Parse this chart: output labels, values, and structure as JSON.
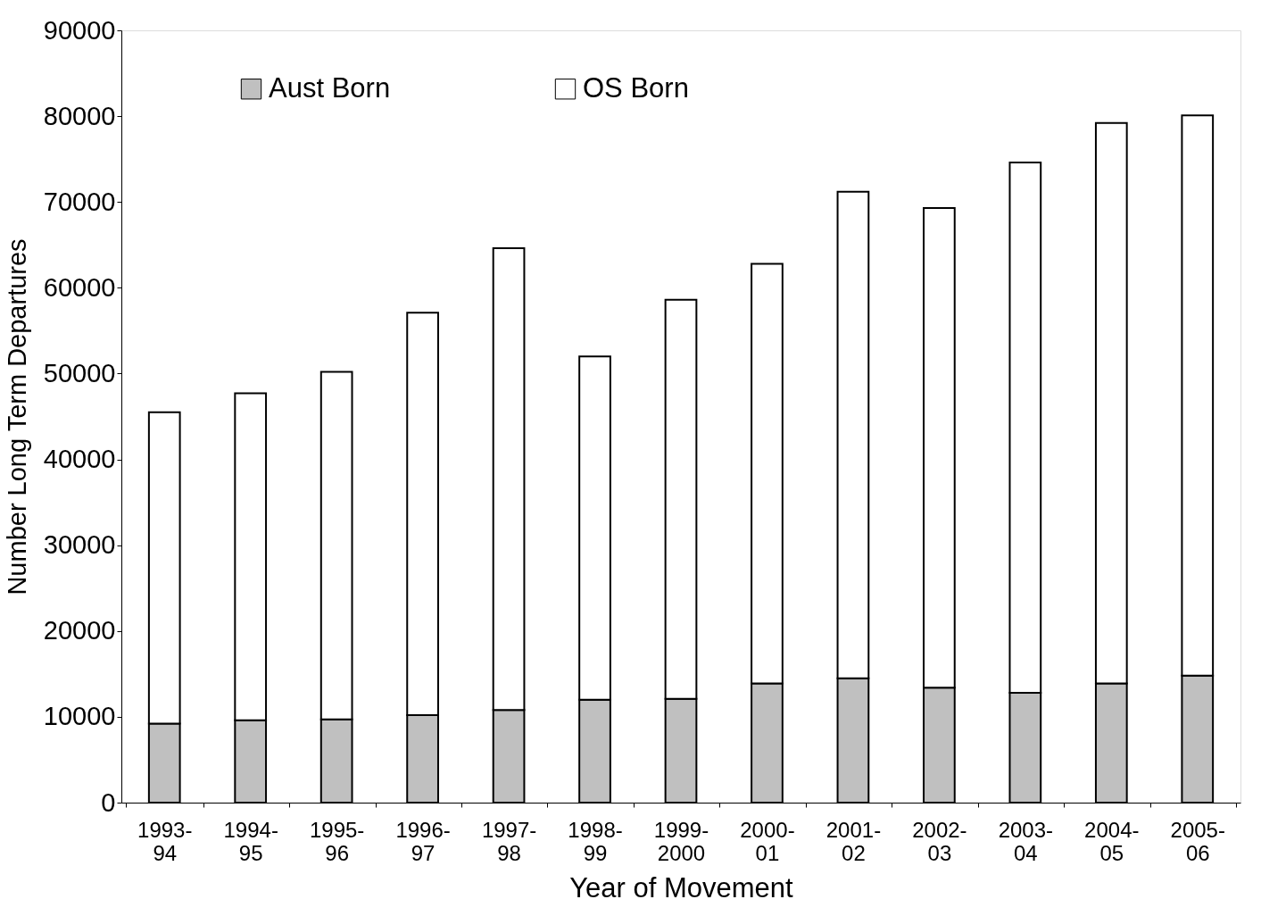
{
  "chart_data": {
    "type": "bar",
    "stacked": true,
    "xlabel": "Year of Movement",
    "ylabel": "Number Long Term Departures",
    "categories": [
      "1993-94",
      "1994-95",
      "1995-96",
      "1996-97",
      "1997-98",
      "1998-99",
      "1999-2000",
      "2000-01",
      "2001-02",
      "2002-03",
      "2003-04",
      "2004-05",
      "2005-06"
    ],
    "series": [
      {
        "name": "Aust Born",
        "color": "#c0c0c0",
        "values": [
          9200,
          9600,
          9700,
          10200,
          10800,
          12000,
          12100,
          13900,
          14500,
          13400,
          12800,
          13900,
          14800
        ]
      },
      {
        "name": "OS Born",
        "color": "#ffffff",
        "values": [
          36300,
          38100,
          40500,
          46900,
          53800,
          40000,
          46500,
          48900,
          56700,
          55900,
          61800,
          65300,
          65300
        ]
      }
    ],
    "ylim": [
      0,
      90000
    ],
    "yticks": [
      0,
      10000,
      20000,
      30000,
      40000,
      50000,
      60000,
      70000,
      80000,
      90000
    ],
    "grid": false,
    "legend": "top"
  }
}
